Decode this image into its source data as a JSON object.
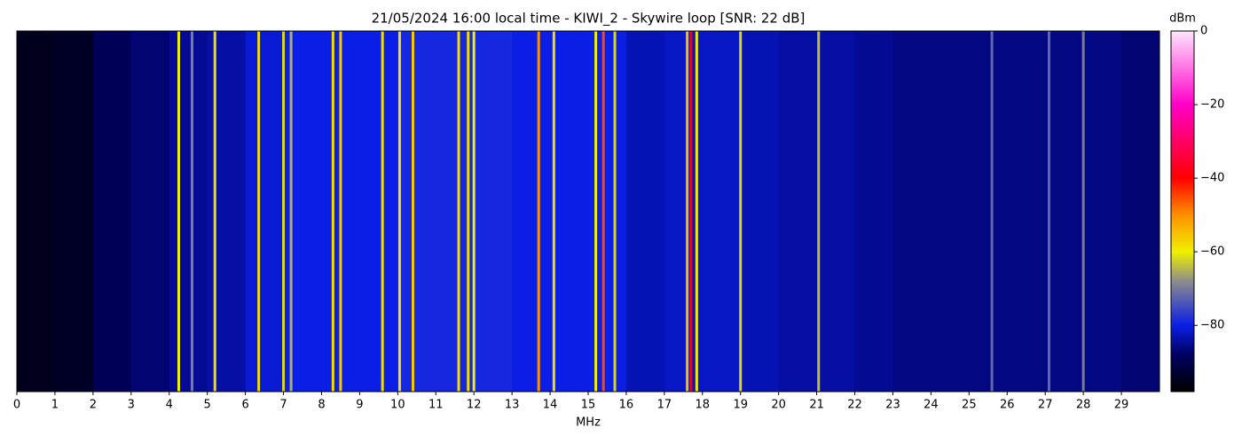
{
  "chart_data": {
    "type": "waterfall",
    "title": "21/05/2024 16:00 local time - KIWI_2 - Skywire loop [SNR: 22 dB]",
    "x_label": "MHz",
    "colorbar_label": "dBm",
    "xlim": [
      0,
      30
    ],
    "xticks": [
      0,
      1,
      2,
      3,
      4,
      5,
      6,
      7,
      8,
      9,
      10,
      11,
      12,
      13,
      14,
      15,
      16,
      17,
      18,
      19,
      20,
      21,
      22,
      23,
      24,
      25,
      26,
      27,
      28,
      29
    ],
    "clim": [
      -98,
      0
    ],
    "cticks": [
      0,
      {
        "value": -20,
        "label": "−20"
      },
      {
        "value": -40,
        "label": "−40"
      },
      {
        "value": -60,
        "label": "−60"
      },
      {
        "value": -80,
        "label": "−80"
      }
    ],
    "colormap": [
      {
        "value": -98,
        "color": "#000000"
      },
      {
        "value": -88,
        "color": "#000060"
      },
      {
        "value": -80,
        "color": "#0a1ee6"
      },
      {
        "value": -68,
        "color": "#8c8c8c"
      },
      {
        "value": -60,
        "color": "#f0f000"
      },
      {
        "value": -50,
        "color": "#ff9000"
      },
      {
        "value": -40,
        "color": "#ff0000"
      },
      {
        "value": -20,
        "color": "#ff00c8"
      },
      {
        "value": 0,
        "color": "#ffe6ff"
      }
    ],
    "background": {
      "bins": [
        0,
        1,
        2,
        3,
        4,
        5,
        6,
        7,
        8,
        9,
        10,
        11,
        12,
        13,
        14,
        15,
        16,
        17,
        18,
        19,
        20,
        21,
        22,
        23,
        24,
        25,
        26,
        27,
        28,
        29,
        30
      ],
      "values": [
        -95,
        -94,
        -89,
        -87,
        -85,
        -84,
        -81,
        -80,
        -80,
        -80,
        -79,
        -79,
        -79,
        -80,
        -80,
        -80,
        -83,
        -82,
        -82,
        -83,
        -84,
        -84,
        -85,
        -86,
        -86,
        -86,
        -86,
        -86,
        -86,
        -87
      ]
    },
    "signals": {
      "x": [
        4.25,
        4.6,
        5.2,
        6.35,
        7.0,
        7.2,
        8.3,
        8.5,
        9.6,
        10.05,
        10.4,
        11.6,
        11.85,
        12.0,
        13.7,
        14.1,
        15.2,
        15.4,
        15.7,
        17.6,
        17.7,
        17.85,
        19.0,
        21.05,
        25.6,
        27.1,
        28.0
      ],
      "values": [
        -60,
        -70,
        -58,
        -58,
        -62,
        -65,
        -58,
        -56,
        -58,
        -58,
        -56,
        -58,
        -58,
        -60,
        -50,
        -58,
        -60,
        -45,
        -62,
        -55,
        -40,
        -60,
        -62,
        -64,
        -72,
        -72,
        -70
      ]
    }
  }
}
